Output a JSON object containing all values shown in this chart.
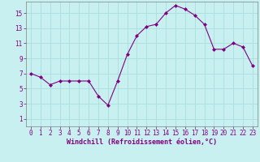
{
  "x": [
    0,
    1,
    2,
    3,
    4,
    5,
    6,
    7,
    8,
    9,
    10,
    11,
    12,
    13,
    14,
    15,
    16,
    17,
    18,
    19,
    20,
    21,
    22,
    23
  ],
  "y": [
    7.0,
    6.5,
    5.5,
    6.0,
    6.0,
    6.0,
    6.0,
    4.0,
    2.8,
    6.0,
    9.5,
    12.0,
    13.2,
    13.5,
    15.0,
    16.0,
    15.5,
    14.7,
    13.5,
    10.2,
    10.2,
    11.0,
    10.5,
    8.0
  ],
  "line_color": "#800080",
  "marker": "D",
  "marker_size": 2,
  "bg_color": "#c8f0f0",
  "grid_color": "#aadddd",
  "xlabel": "Windchill (Refroidissement éolien,°C)",
  "xlabel_color": "#800080",
  "tick_color": "#800080",
  "spine_color": "#808080",
  "xlim": [
    -0.5,
    23.5
  ],
  "ylim": [
    0,
    16.5
  ],
  "yticks": [
    1,
    3,
    5,
    7,
    9,
    11,
    13,
    15
  ],
  "xticks": [
    0,
    1,
    2,
    3,
    4,
    5,
    6,
    7,
    8,
    9,
    10,
    11,
    12,
    13,
    14,
    15,
    16,
    17,
    18,
    19,
    20,
    21,
    22,
    23
  ],
  "tick_fontsize": 5.5,
  "xlabel_fontsize": 6.0
}
